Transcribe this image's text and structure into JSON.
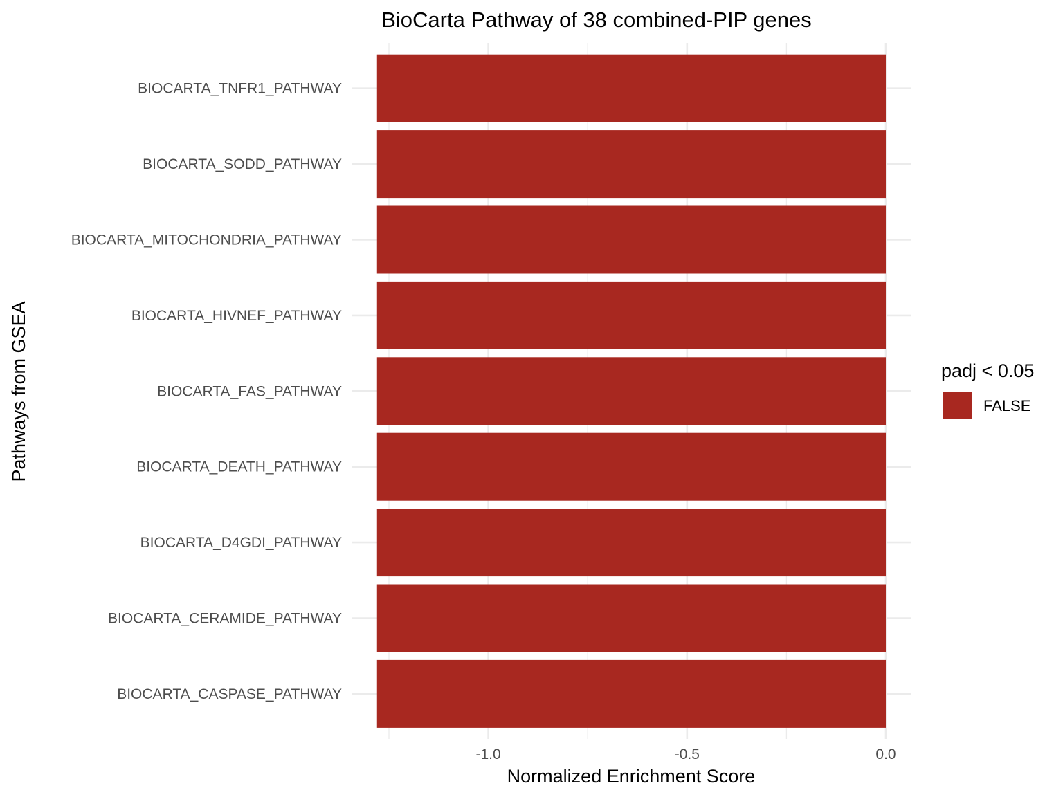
{
  "chart_data": {
    "type": "bar",
    "orientation": "horizontal",
    "title": "BioCarta Pathway of 38 combined-PIP genes",
    "xlabel": "Normalized Enrichment Score",
    "ylabel": "Pathways from GSEA",
    "xlim": [
      -1.28,
      0.05
    ],
    "xticks": [
      {
        "value": -1.0,
        "label": "-1.0"
      },
      {
        "value": -0.5,
        "label": "-0.5"
      },
      {
        "value": 0.0,
        "label": "0.0"
      }
    ],
    "x_minor_gridlines": [
      -1.25,
      -0.75,
      -0.25
    ],
    "grid": true,
    "categories": [
      "BIOCARTA_TNFR1_PATHWAY",
      "BIOCARTA_SODD_PATHWAY",
      "BIOCARTA_MITOCHONDRIA_PATHWAY",
      "BIOCARTA_HIVNEF_PATHWAY",
      "BIOCARTA_FAS_PATHWAY",
      "BIOCARTA_DEATH_PATHWAY",
      "BIOCARTA_D4GDI_PATHWAY",
      "BIOCARTA_CERAMIDE_PATHWAY",
      "BIOCARTA_CASPASE_PATHWAY"
    ],
    "values": [
      -1.28,
      -1.28,
      -1.28,
      -1.28,
      -1.28,
      -1.28,
      -1.28,
      -1.28,
      -1.28
    ],
    "fill_group": [
      "FALSE",
      "FALSE",
      "FALSE",
      "FALSE",
      "FALSE",
      "FALSE",
      "FALSE",
      "FALSE",
      "FALSE"
    ],
    "legend": {
      "title": "padj < 0.05",
      "entries": [
        {
          "label": "FALSE",
          "color": "#a82820"
        }
      ],
      "position": "right"
    },
    "colors": {
      "bar": "#a82820",
      "grid": "#ebebeb",
      "background": "#ffffff"
    }
  }
}
